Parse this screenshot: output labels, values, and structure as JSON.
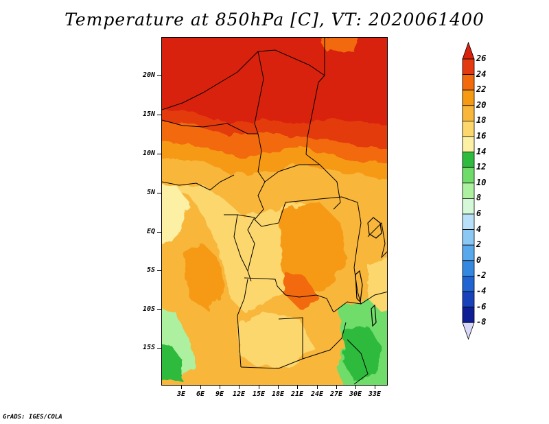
{
  "title": "Temperature at 850hPa [C], VT: 2020061400",
  "credit": "GrADS: IGES/COLA",
  "lat_labels": [
    "20N",
    "15N",
    "10N",
    "5N",
    "EQ",
    "5S",
    "10S",
    "15S"
  ],
  "lon_labels": [
    "3E",
    "6E",
    "9E",
    "12E",
    "15E",
    "18E",
    "21E",
    "24E",
    "27E",
    "30E",
    "33E"
  ],
  "colorbar": {
    "labels": [
      "26",
      "24",
      "22",
      "20",
      "18",
      "16",
      "14",
      "12",
      "10",
      "8",
      "6",
      "4",
      "2",
      "0",
      "-2",
      "-4",
      "-6",
      "-8"
    ],
    "colors": [
      "#d8220e",
      "#e43a10",
      "#f26a0c",
      "#f69a14",
      "#f8b63a",
      "#fcd76e",
      "#fbf0a4",
      "#2fbb3e",
      "#6fdc6a",
      "#acf0a0",
      "#d4f8d8",
      "#b8e0f8",
      "#8cc8f4",
      "#58a8ec",
      "#3588e0",
      "#1f64d0",
      "#1742ba",
      "#0e1e94",
      "#08086e"
    ],
    "top_color": "#d8220e",
    "bottom_color": "#d8d8f8"
  }
}
